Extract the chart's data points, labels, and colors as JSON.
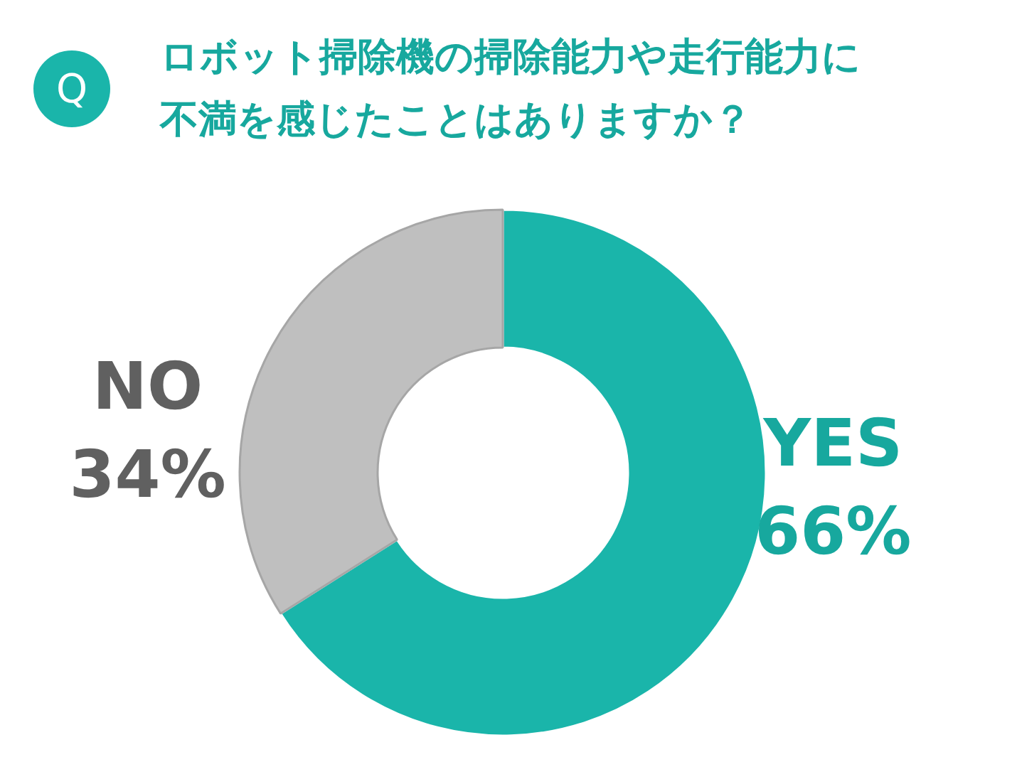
{
  "chart_data": {
    "type": "donut",
    "title": "ロボット掃除機の掃除能力や走行能力に不満を感じたことはありますか？",
    "annotations": [
      "Q"
    ],
    "categories": [
      "YES",
      "NO"
    ],
    "values": [
      66,
      34
    ],
    "value_labels": [
      "66%",
      "34%"
    ],
    "colors": [
      "#1ab5aa",
      "#bfbfbf"
    ]
  }
}
